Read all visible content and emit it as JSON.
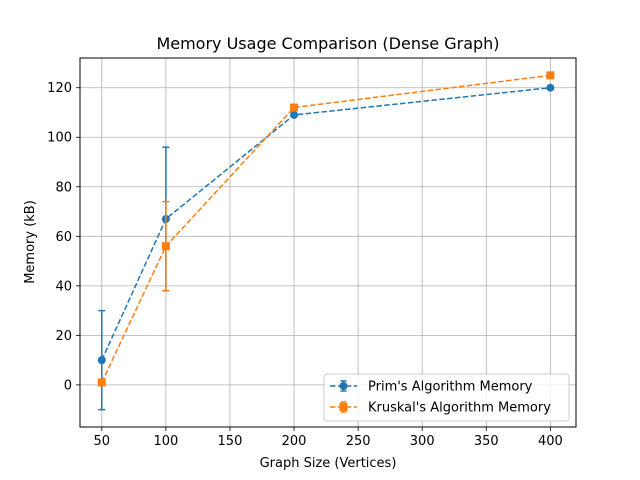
{
  "chart_data": {
    "type": "line",
    "title": "Memory Usage Comparison (Dense Graph)",
    "xlabel": "Graph Size (Vertices)",
    "ylabel": "Memory (kB)",
    "xlim": [
      33,
      420
    ],
    "ylim": [
      -17,
      132
    ],
    "x_ticks": [
      50,
      100,
      150,
      200,
      250,
      300,
      350,
      400
    ],
    "y_ticks": [
      0,
      20,
      40,
      60,
      80,
      100,
      120
    ],
    "grid": true,
    "legend_position": "lower-right",
    "x": [
      50,
      100,
      200,
      400
    ],
    "series": [
      {
        "name": "Prim's Algorithm Memory",
        "values": [
          10,
          67,
          109,
          120
        ],
        "errors": [
          20,
          29,
          0,
          0
        ],
        "color": "#1f77b4",
        "marker": "circle",
        "linestyle": "dashed"
      },
      {
        "name": "Kruskal's Algorithm Memory",
        "values": [
          1,
          56,
          112,
          125
        ],
        "errors": [
          0,
          18,
          0,
          0
        ],
        "color": "#ff7f0e",
        "marker": "square",
        "linestyle": "dashed"
      }
    ]
  }
}
